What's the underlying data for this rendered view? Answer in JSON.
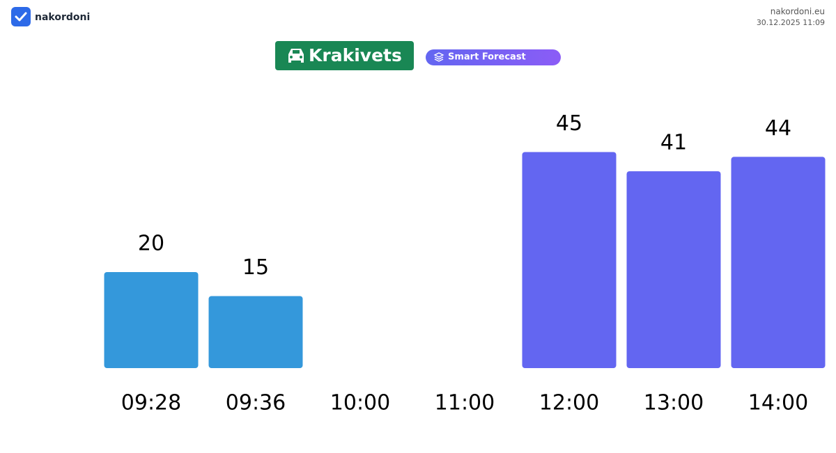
{
  "header": {
    "brand": "nakordoni",
    "site": "nakordoni.eu",
    "timestamp": "30.12.2025 11:09",
    "checkpoint": "Krakivets",
    "badge": "Smart Forecast"
  },
  "chart_data": {
    "type": "bar",
    "categories": [
      "09:28",
      "09:36",
      "10:00",
      "11:00",
      "12:00",
      "13:00",
      "14:00"
    ],
    "values": [
      20,
      15,
      null,
      null,
      45,
      41,
      44
    ],
    "colors": [
      "#3498db",
      "#3498db",
      "#6366f1",
      "#6366f1",
      "#6366f1",
      "#6366f1",
      "#6366f1"
    ],
    "ylim": [
      0,
      50
    ]
  }
}
